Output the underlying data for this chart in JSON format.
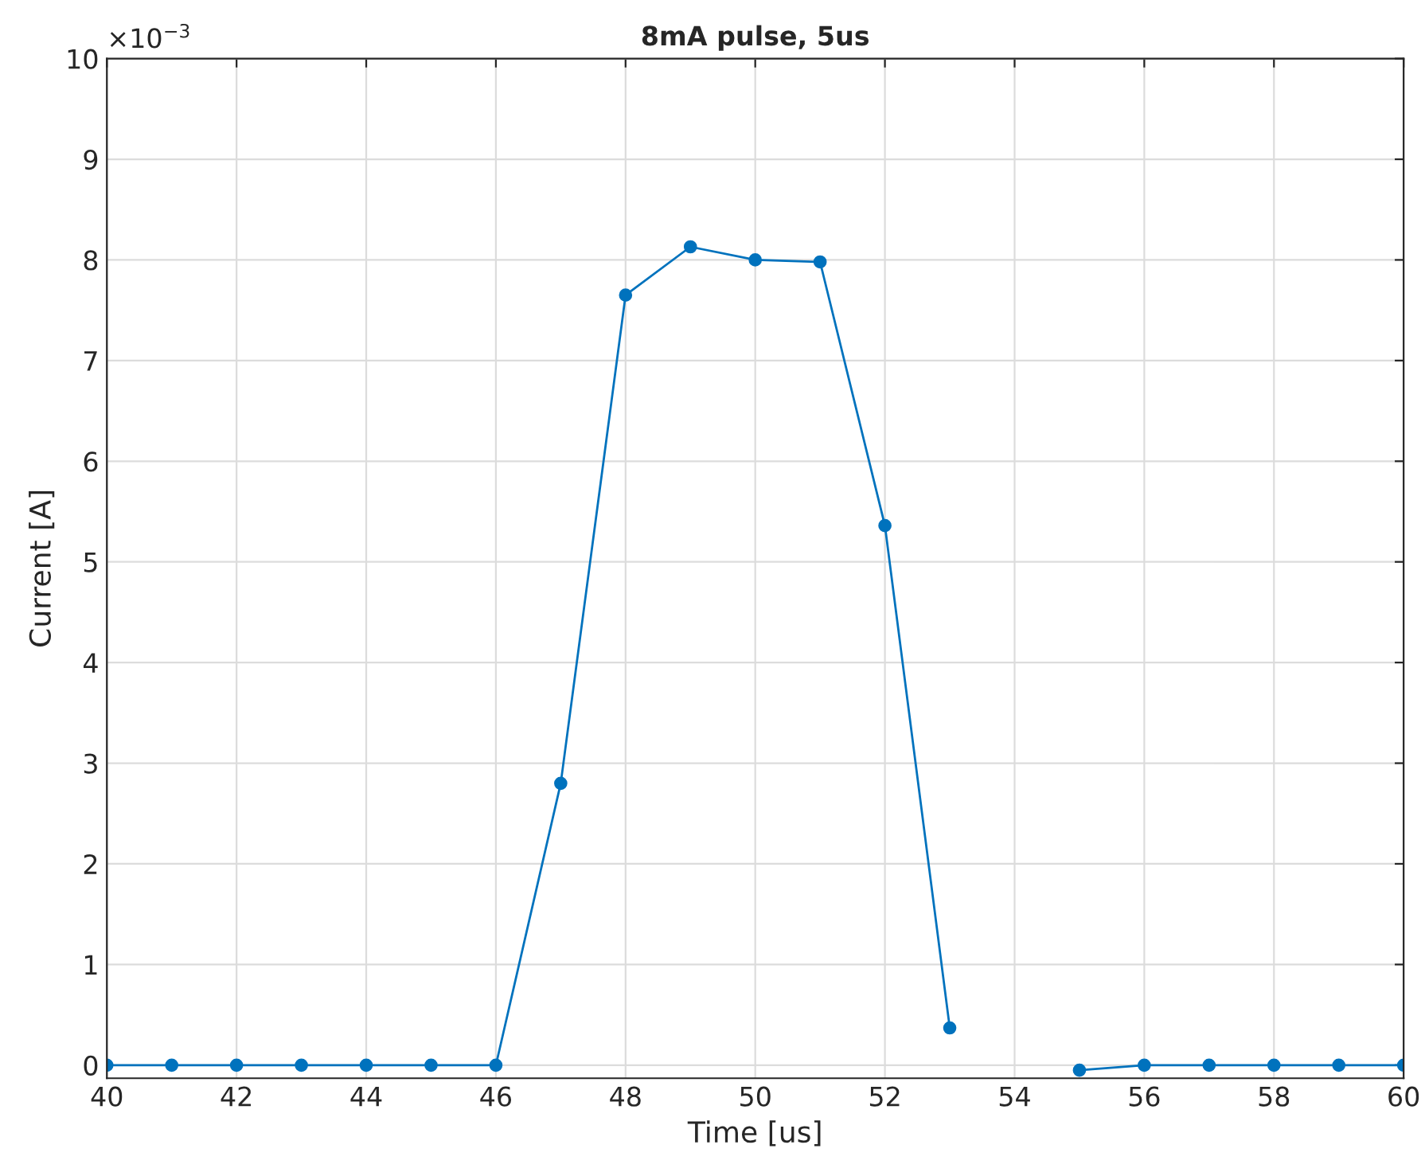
{
  "chart_data": {
    "type": "line",
    "title": "8mA pulse, 5us",
    "xlabel": "Time [us]",
    "ylabel": "Current [A]",
    "x": [
      40,
      41,
      42,
      43,
      44,
      45,
      46,
      47,
      48,
      49,
      50,
      51,
      52,
      53,
      54,
      55,
      56,
      57,
      58,
      59,
      60
    ],
    "series": [
      {
        "color": "#0072bd",
        "values": [
          0,
          0,
          0,
          0,
          0,
          0,
          0,
          2.8,
          7.65,
          8.13,
          8.0,
          7.98,
          5.36,
          0.37,
          null,
          -0.05,
          0,
          0,
          0,
          0,
          0
        ]
      }
    ],
    "xlim": [
      40,
      60
    ],
    "xticks": [
      40,
      42,
      44,
      46,
      48,
      50,
      52,
      54,
      56,
      58,
      60
    ],
    "ylim": [
      -0.13,
      10
    ],
    "yticks": [
      0,
      1,
      2,
      3,
      4,
      5,
      6,
      7,
      8,
      9,
      10
    ],
    "annotations": [
      "×10$^{−3}$"
    ],
    "grid": true,
    "marker": "circle",
    "line_style": "solid"
  }
}
